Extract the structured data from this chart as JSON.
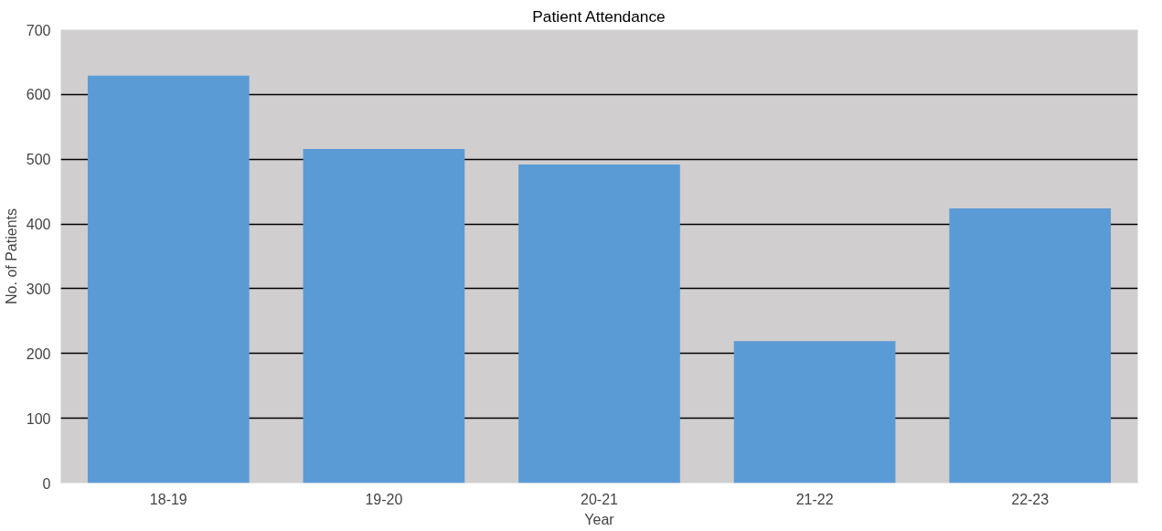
{
  "chart_data": {
    "type": "bar",
    "title": "Patient Attendance",
    "xlabel": "Year",
    "ylabel": "No. of Patients",
    "categories": [
      "18-19",
      "19-20",
      "20-21",
      "21-22",
      "22-23"
    ],
    "values": [
      629,
      516,
      492,
      219,
      424
    ],
    "color": "#5b9bd5",
    "ylim": [
      0,
      700
    ],
    "yticks": [
      0,
      100,
      200,
      300,
      400,
      500,
      600,
      700
    ],
    "grid": "y"
  }
}
